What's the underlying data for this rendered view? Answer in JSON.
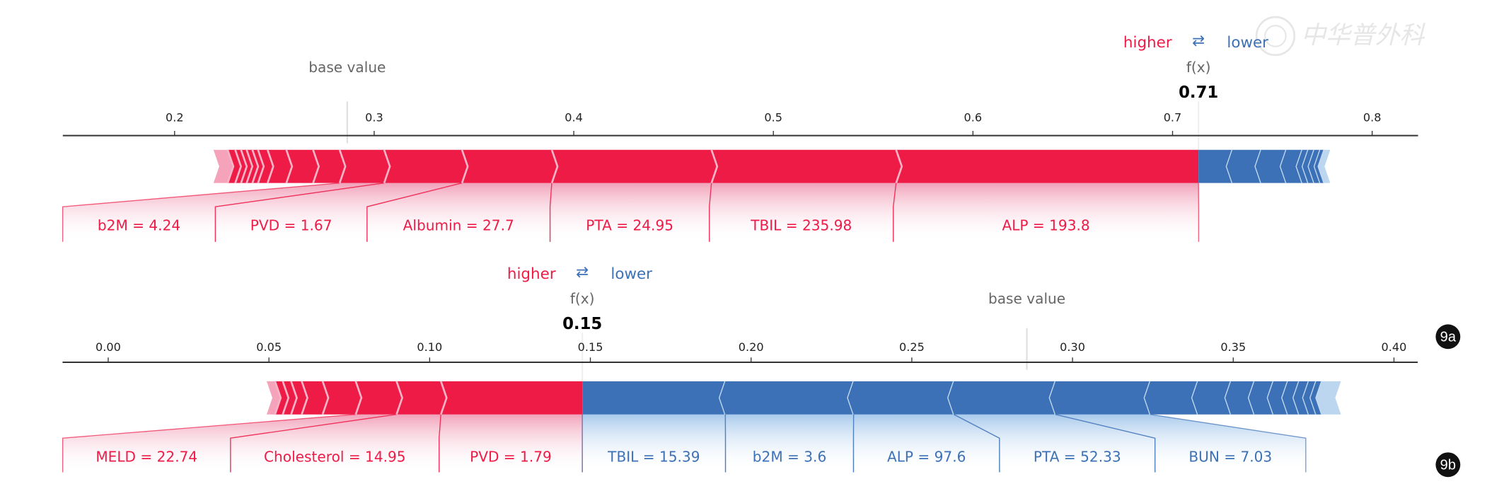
{
  "watermark": "中华普外科",
  "colors": {
    "positive": "#ee1b47",
    "positive_light": "#f5a3bb",
    "negative": "#3d71b7",
    "negative_light": "#bcd6ef",
    "axis": "#333333"
  },
  "chart_data": [
    {
      "type": "force",
      "panel": "9a",
      "higher_label": "higher",
      "arrows": "⇄",
      "lower_label": "lower",
      "fx_label": "f(x)",
      "output_value": 0.713,
      "output_label": "0.71",
      "base_label": "base value",
      "base_value": 0.2865,
      "xlim": [
        0.144,
        0.823
      ],
      "ticks": [
        0.2,
        0.3,
        0.4,
        0.5,
        0.6,
        0.7,
        0.8
      ],
      "tick_labels": [
        "0.2",
        "0.3",
        "0.4",
        "0.5",
        "0.6",
        "0.7",
        "0.8"
      ],
      "positive": [
        {
          "label": "",
          "start": 0.2195,
          "end": 0.2266
        },
        {
          "label": "",
          "start": 0.2266,
          "end": 0.2304
        },
        {
          "label": "",
          "start": 0.2304,
          "end": 0.2333
        },
        {
          "label": "",
          "start": 0.2333,
          "end": 0.2361
        },
        {
          "label": "",
          "start": 0.2361,
          "end": 0.239
        },
        {
          "label": "",
          "start": 0.239,
          "end": 0.2418
        },
        {
          "label": "",
          "start": 0.2418,
          "end": 0.2466
        },
        {
          "label": "",
          "start": 0.2466,
          "end": 0.256
        },
        {
          "label": "",
          "start": 0.256,
          "end": 0.2694
        },
        {
          "label": "",
          "start": 0.2694,
          "end": 0.2827
        },
        {
          "label": "b2M = 4.24",
          "start": 0.2827,
          "end": 0.305
        },
        {
          "label": "PVD = 1.67",
          "start": 0.305,
          "end": 0.344
        },
        {
          "label": "Albumin = 27.7",
          "start": 0.344,
          "end": 0.389
        },
        {
          "label": "PTA = 24.95",
          "start": 0.389,
          "end": 0.469
        },
        {
          "label": "TBIL = 235.98",
          "start": 0.469,
          "end": 0.5615
        },
        {
          "label": "ALP = 193.8",
          "start": 0.5615,
          "end": 0.713
        }
      ],
      "negative": [
        {
          "label": "",
          "start": 0.713,
          "end": 0.73
        },
        {
          "label": "",
          "start": 0.73,
          "end": 0.7444
        },
        {
          "label": "",
          "start": 0.7444,
          "end": 0.757
        },
        {
          "label": "",
          "start": 0.757,
          "end": 0.765
        },
        {
          "label": "",
          "start": 0.765,
          "end": 0.768
        },
        {
          "label": "",
          "start": 0.768,
          "end": 0.771
        },
        {
          "label": "",
          "start": 0.771,
          "end": 0.774
        },
        {
          "label": "",
          "start": 0.774,
          "end": 0.776
        },
        {
          "label": "",
          "start": 0.776,
          "end": 0.779
        }
      ]
    },
    {
      "type": "force",
      "panel": "9b",
      "higher_label": "higher",
      "arrows": "⇄",
      "lower_label": "lower",
      "fx_label": "f(x)",
      "output_value": 0.1475,
      "output_label": "0.15",
      "base_label": "base value",
      "base_value": 0.2858,
      "xlim": [
        -0.0142,
        0.4074
      ],
      "ticks": [
        0.0,
        0.05,
        0.1,
        0.15,
        0.2,
        0.25,
        0.3,
        0.35,
        0.4
      ],
      "tick_labels": [
        "0.00",
        "0.05",
        "0.10",
        "0.15",
        "0.20",
        "0.25",
        "0.30",
        "0.35",
        "0.40"
      ],
      "positive": [
        {
          "label": "",
          "start": 0.0493,
          "end": 0.0519
        },
        {
          "label": "",
          "start": 0.0519,
          "end": 0.0543
        },
        {
          "label": "",
          "start": 0.0543,
          "end": 0.0569
        },
        {
          "label": "",
          "start": 0.0569,
          "end": 0.0602
        },
        {
          "label": "",
          "start": 0.0602,
          "end": 0.0667
        },
        {
          "label": "",
          "start": 0.0667,
          "end": 0.077
        },
        {
          "label": "MELD = 22.74",
          "start": 0.077,
          "end": 0.0897
        },
        {
          "label": "Cholesterol = 14.95",
          "start": 0.0897,
          "end": 0.1035
        },
        {
          "label": "PVD = 1.79",
          "start": 0.1035,
          "end": 0.1475
        }
      ],
      "negative": [
        {
          "label": "TBIL = 15.39",
          "start": 0.1475,
          "end": 0.192
        },
        {
          "label": "b2M = 3.6",
          "start": 0.192,
          "end": 0.2319
        },
        {
          "label": "ALP = 97.6",
          "start": 0.2319,
          "end": 0.2631
        },
        {
          "label": "PTA = 52.33",
          "start": 0.2631,
          "end": 0.2947
        },
        {
          "label": "BUN = 7.03",
          "start": 0.2947,
          "end": 0.3242
        },
        {
          "label": "",
          "start": 0.3242,
          "end": 0.339
        },
        {
          "label": "",
          "start": 0.339,
          "end": 0.3493
        },
        {
          "label": "",
          "start": 0.3493,
          "end": 0.3566
        },
        {
          "label": "",
          "start": 0.3566,
          "end": 0.3625
        },
        {
          "label": "",
          "start": 0.3625,
          "end": 0.367
        },
        {
          "label": "",
          "start": 0.367,
          "end": 0.3705
        },
        {
          "label": "",
          "start": 0.3705,
          "end": 0.3735
        },
        {
          "label": "",
          "start": 0.3735,
          "end": 0.3758
        },
        {
          "label": "",
          "start": 0.3758,
          "end": 0.3776
        },
        {
          "label": "",
          "start": 0.3776,
          "end": 0.3835
        }
      ]
    }
  ]
}
